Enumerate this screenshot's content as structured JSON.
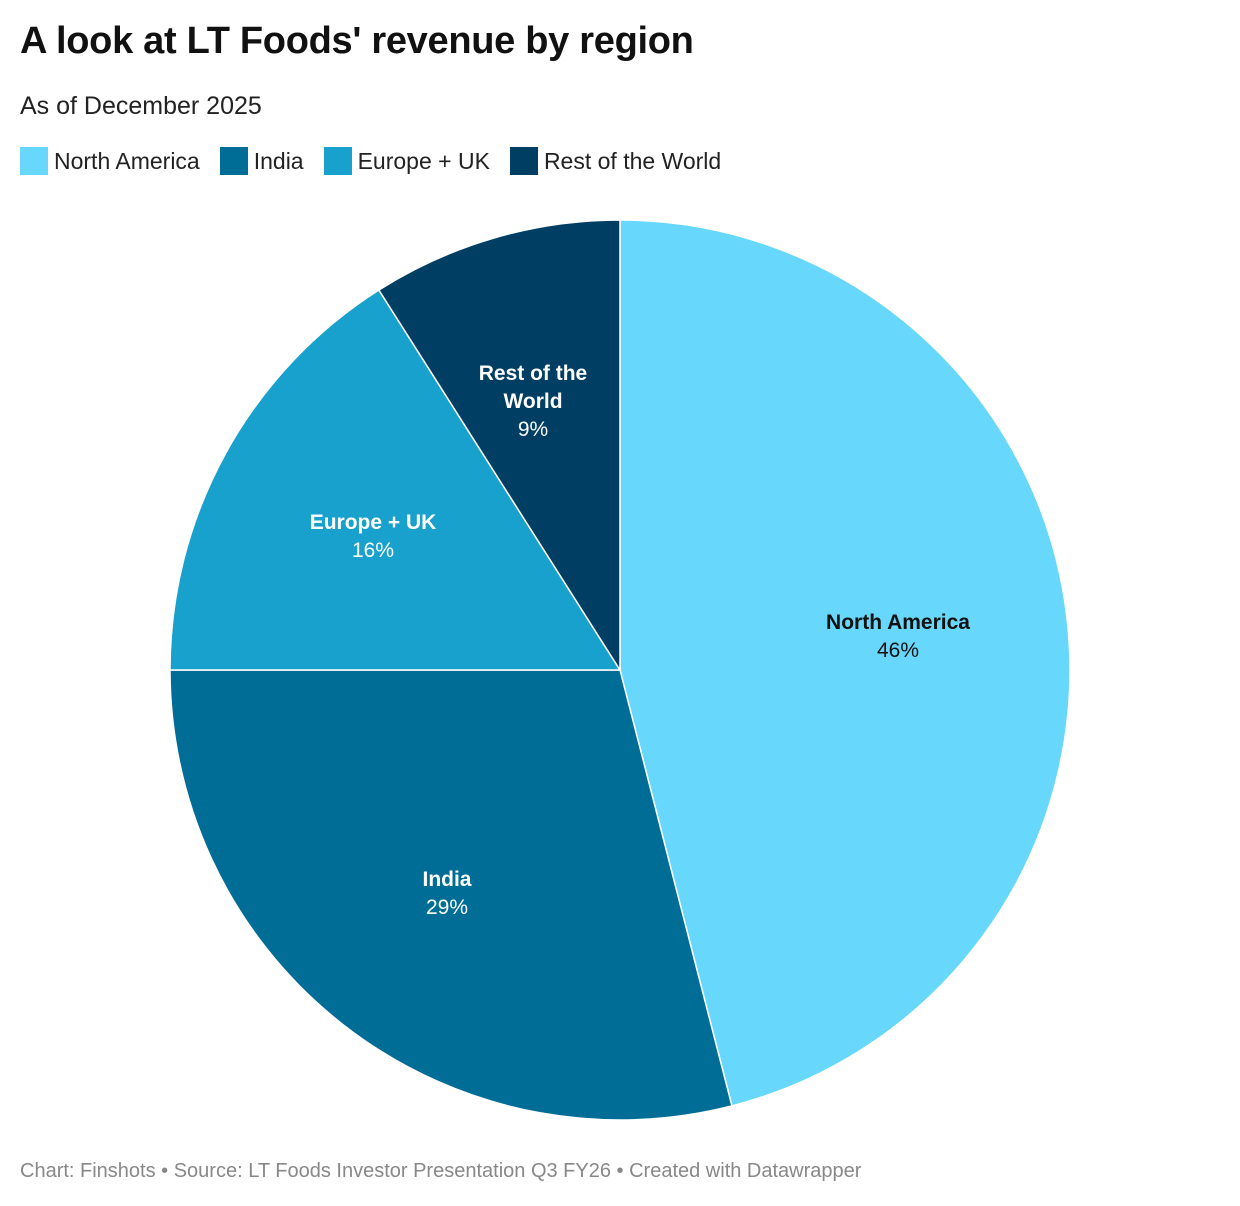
{
  "chart_data": {
    "type": "pie",
    "title": "A look at LT Foods' revenue by region",
    "subtitle": "As of December 2025",
    "legend_position": "top-left",
    "slices": [
      {
        "label": "North America",
        "label_lines": [
          "North America"
        ],
        "value": 46,
        "value_label": "46%",
        "color": "#67d7fb",
        "text_color": "#111111"
      },
      {
        "label": "India",
        "label_lines": [
          "India"
        ],
        "value": 29,
        "value_label": "29%",
        "color": "#006d96",
        "text_color": "#ffffff"
      },
      {
        "label": "Europe + UK",
        "label_lines": [
          "Europe + UK"
        ],
        "value": 16,
        "value_label": "16%",
        "color": "#18a1cd",
        "text_color": "#ffffff"
      },
      {
        "label": "Rest of the World",
        "label_lines": [
          "Rest of the",
          "World"
        ],
        "value": 9,
        "value_label": "9%",
        "color": "#013e63",
        "text_color": "#ffffff"
      }
    ]
  },
  "footer": "Chart: Finshots • Source: LT Foods Investor Presentation Q3 FY26 • Created with Datawrapper"
}
